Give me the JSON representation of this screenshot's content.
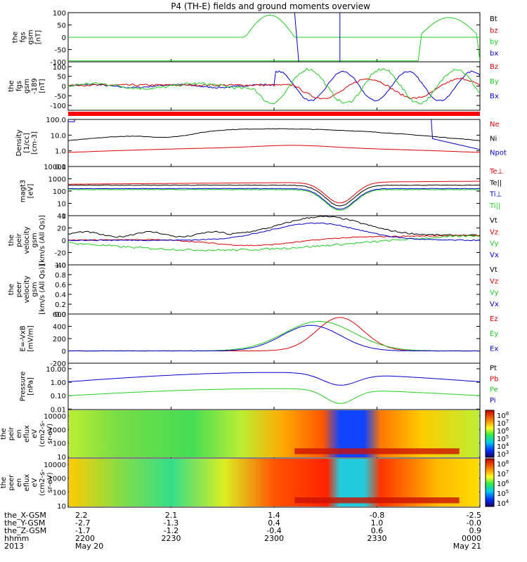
{
  "title": "P4 (TH-E) fields and ground moments overview",
  "colors": {
    "black": "#000000",
    "red": "#dd0000",
    "green": "#22cc22",
    "blue": "#0000cc"
  },
  "chart_data": [
    {
      "type": "line",
      "name": "panel-fgs",
      "ylabel": [
        "the",
        "fgs",
        "gsm",
        "[nT]"
      ],
      "ylim": [
        -100,
        100
      ],
      "yticks": [
        "100",
        "50",
        "0",
        "-50",
        "-100"
      ],
      "legend": [
        {
          "text": "Bt",
          "color": "black"
        },
        {
          "text": "bz",
          "color": "red"
        },
        {
          "text": "by",
          "color": "green"
        },
        {
          "text": "bx",
          "color": "blue"
        }
      ]
    },
    {
      "type": "line",
      "name": "panel-fgs-dsl",
      "ylabel": [
        "the",
        "fgs",
        "gsm",
        "-189",
        "[nT]"
      ],
      "ylim": [
        -125,
        125
      ],
      "yticks": [
        "100",
        "50",
        "0",
        "-50",
        "-100"
      ],
      "legend": [
        {
          "text": "Bz",
          "color": "red"
        },
        {
          "text": "By",
          "color": "green"
        },
        {
          "text": "Bx",
          "color": "blue"
        }
      ]
    },
    {
      "type": "line",
      "name": "panel-density",
      "ylabel": [
        "Density",
        "[1/cc]",
        "[cm-3]"
      ],
      "scale": "log",
      "ylim": [
        0.1,
        100
      ],
      "yticks": [
        "100.0",
        "10.0",
        "1.0",
        "0.1"
      ],
      "legend": [
        {
          "text": "Ne",
          "color": "red"
        },
        {
          "text": "Ni",
          "color": "black"
        },
        {
          "text": "Npot",
          "color": "blue"
        }
      ]
    },
    {
      "type": "line",
      "name": "panel-temperature",
      "ylabel": [
        "magt3",
        "[eV]"
      ],
      "scale": "log",
      "ylim": [
        1,
        10000
      ],
      "yticks": [
        "10000",
        "1000",
        "100",
        "10",
        "1"
      ],
      "legend": [
        {
          "text": "Te⊥",
          "color": "red"
        },
        {
          "text": "Te||",
          "color": "black"
        },
        {
          "text": "Ti⊥",
          "color": "blue"
        },
        {
          "text": "Ti||",
          "color": "green"
        }
      ]
    },
    {
      "type": "line",
      "name": "panel-peir-velocity",
      "ylabel": [
        "the",
        "peir",
        "velocity",
        "gsm",
        "[km/s (All Qs)]"
      ],
      "ylim": [
        -40,
        40
      ],
      "yticks": [
        "40",
        "20",
        "0",
        "-20",
        "-40"
      ],
      "legend": [
        {
          "text": "Vt",
          "color": "black"
        },
        {
          "text": "Vz",
          "color": "red"
        },
        {
          "text": "Vy",
          "color": "green"
        },
        {
          "text": "Vx",
          "color": "blue"
        }
      ]
    },
    {
      "type": "line",
      "name": "panel-peer-velocity",
      "ylabel": [
        "the",
        "peer",
        "velocity",
        "gsm",
        "[km/s (All Qs)]"
      ],
      "ylim": [
        0,
        1
      ],
      "yticks": [
        "1.0",
        "0.8",
        "0.6",
        "0.4",
        "0.2",
        "0.0"
      ],
      "legend": [
        {
          "text": "Vt",
          "color": "black"
        },
        {
          "text": "Vz",
          "color": "red"
        },
        {
          "text": "Vy",
          "color": "green"
        },
        {
          "text": "Vx",
          "color": "blue"
        }
      ]
    },
    {
      "type": "line",
      "name": "panel-efield",
      "ylabel": [
        "E=-VxB",
        "[mV/m]"
      ],
      "ylim": [
        -200,
        600
      ],
      "yticks": [
        "600",
        "400",
        "200",
        "0",
        "-200"
      ],
      "legend": [
        {
          "text": "Ez",
          "color": "red"
        },
        {
          "text": "Ey",
          "color": "green"
        },
        {
          "text": "Ex",
          "color": "blue"
        }
      ]
    },
    {
      "type": "line",
      "name": "panel-pressure",
      "ylabel": [
        "Pressure",
        "[nPa]"
      ],
      "scale": "log",
      "ylim": [
        0.01,
        30
      ],
      "yticks": [
        "10.00",
        "1.00",
        "0.10",
        "0.01"
      ],
      "legend": [
        {
          "text": "Pt",
          "color": "black"
        },
        {
          "text": "Pb",
          "color": "red"
        },
        {
          "text": "Pe",
          "color": "green"
        },
        {
          "text": "Pi",
          "color": "blue"
        }
      ]
    },
    {
      "type": "heatmap",
      "name": "panel-peir-spec",
      "ylabel": [
        "the",
        "peir",
        "en",
        "eflux",
        "eV",
        "(cm2-s-",
        "sr-eV)"
      ],
      "scale": "log",
      "yticks": [
        "10000",
        "1000",
        "100",
        "10"
      ],
      "colorbar": [
        "10^8",
        "10^7",
        "10^6",
        "10^5",
        "10^4",
        "10^3"
      ]
    },
    {
      "type": "heatmap",
      "name": "panel-peer-spec",
      "ylabel": [
        "the",
        "peer",
        "en",
        "eflux",
        "eV",
        "(cm2-s-",
        "sr-eV)"
      ],
      "scale": "log",
      "yticks": [
        "10000",
        "1000",
        "100",
        "10"
      ],
      "colorbar": [
        "10^8",
        "10^7",
        "10^6",
        "10^5",
        "10^4"
      ]
    }
  ],
  "xaxis": {
    "row_labels": [
      "the_X-GSM",
      "the_Y-GSM",
      "the_Z-GSM",
      "hhmm",
      "2013"
    ],
    "columns": [
      {
        "values": [
          "2.2",
          "-2.7",
          "-1.7",
          "2200",
          "May 20"
        ]
      },
      {
        "values": [
          "2.1",
          "-1.3",
          "-1.2",
          "2230",
          ""
        ]
      },
      {
        "values": [
          "1.4",
          "0.4",
          "-0.4",
          "2300",
          ""
        ]
      },
      {
        "values": [
          "-0.8",
          "1.0",
          "0.6",
          "2330",
          ""
        ]
      },
      {
        "values": [
          "-2.5",
          "-0.0",
          "0.9",
          "0000",
          "May 21"
        ]
      }
    ]
  }
}
